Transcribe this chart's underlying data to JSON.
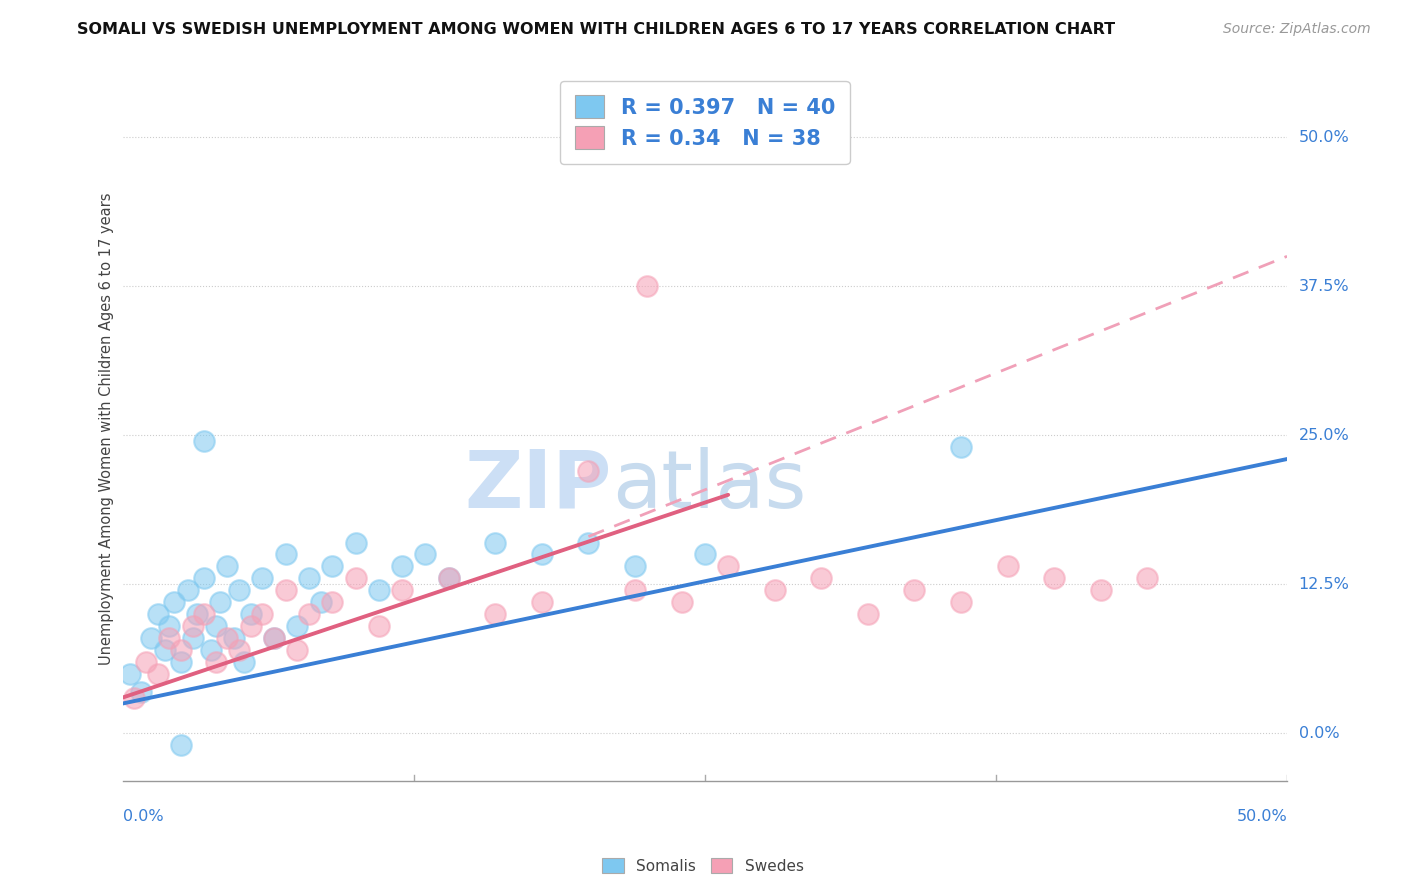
{
  "title": "SOMALI VS SWEDISH UNEMPLOYMENT AMONG WOMEN WITH CHILDREN AGES 6 TO 17 YEARS CORRELATION CHART",
  "source": "Source: ZipAtlas.com",
  "ylabel": "Unemployment Among Women with Children Ages 6 to 17 years",
  "xlim": [
    0,
    50
  ],
  "ylim": [
    -4,
    55
  ],
  "ytick_labels": [
    "0.0%",
    "12.5%",
    "25.0%",
    "37.5%",
    "50.0%"
  ],
  "ytick_values": [
    0,
    12.5,
    25.0,
    37.5,
    50.0
  ],
  "xtick_values": [
    0,
    12.5,
    25.0,
    37.5,
    50.0
  ],
  "R_somali": 0.397,
  "N_somali": 40,
  "R_swedes": 0.34,
  "N_swedes": 38,
  "somali_color": "#7ec8f0",
  "swedes_color": "#f5a0b5",
  "somali_line_color": "#3a7fd5",
  "swedes_line_color": "#e06080",
  "swedes_dashed_color": "#f0a0b8",
  "background_color": "#ffffff",
  "somali_x": [
    0.3,
    0.8,
    1.2,
    1.5,
    1.8,
    2.0,
    2.2,
    2.5,
    2.8,
    3.0,
    3.2,
    3.5,
    3.8,
    4.0,
    4.2,
    4.5,
    4.8,
    5.0,
    5.2,
    5.5,
    6.0,
    6.5,
    7.0,
    7.5,
    8.0,
    8.5,
    9.0,
    10.0,
    11.0,
    12.0,
    13.0,
    14.0,
    16.0,
    18.0,
    20.0,
    22.0,
    25.0,
    3.5,
    36.0,
    2.5
  ],
  "somali_y": [
    5.0,
    3.5,
    8.0,
    10.0,
    7.0,
    9.0,
    11.0,
    6.0,
    12.0,
    8.0,
    10.0,
    13.0,
    7.0,
    9.0,
    11.0,
    14.0,
    8.0,
    12.0,
    6.0,
    10.0,
    13.0,
    8.0,
    15.0,
    9.0,
    13.0,
    11.0,
    14.0,
    16.0,
    12.0,
    14.0,
    15.0,
    13.0,
    16.0,
    15.0,
    16.0,
    14.0,
    15.0,
    24.5,
    24.0,
    -1.0
  ],
  "swedes_x": [
    0.5,
    1.0,
    1.5,
    2.0,
    2.5,
    3.0,
    3.5,
    4.0,
    4.5,
    5.0,
    5.5,
    6.0,
    6.5,
    7.0,
    7.5,
    8.0,
    9.0,
    10.0,
    11.0,
    12.0,
    14.0,
    16.0,
    18.0,
    20.0,
    22.0,
    24.0,
    26.0,
    28.0,
    30.0,
    32.0,
    34.0,
    36.0,
    38.0,
    40.0,
    42.0,
    44.0,
    22.0,
    22.5
  ],
  "swedes_y": [
    3.0,
    6.0,
    5.0,
    8.0,
    7.0,
    9.0,
    10.0,
    6.0,
    8.0,
    7.0,
    9.0,
    10.0,
    8.0,
    12.0,
    7.0,
    10.0,
    11.0,
    13.0,
    9.0,
    12.0,
    13.0,
    10.0,
    11.0,
    22.0,
    12.0,
    11.0,
    14.0,
    12.0,
    13.0,
    10.0,
    12.0,
    11.0,
    14.0,
    13.0,
    12.0,
    13.0,
    50.0,
    37.5
  ],
  "blue_line_x0": 0,
  "blue_line_y0": 2.5,
  "blue_line_x1": 50,
  "blue_line_y1": 23.0,
  "pink_solid_x0": 0,
  "pink_solid_y0": 3.0,
  "pink_solid_x1": 26,
  "pink_solid_y1": 20.0,
  "pink_dash_x0": 20,
  "pink_dash_y0": 16.5,
  "pink_dash_x1": 50,
  "pink_dash_y1": 40.0
}
